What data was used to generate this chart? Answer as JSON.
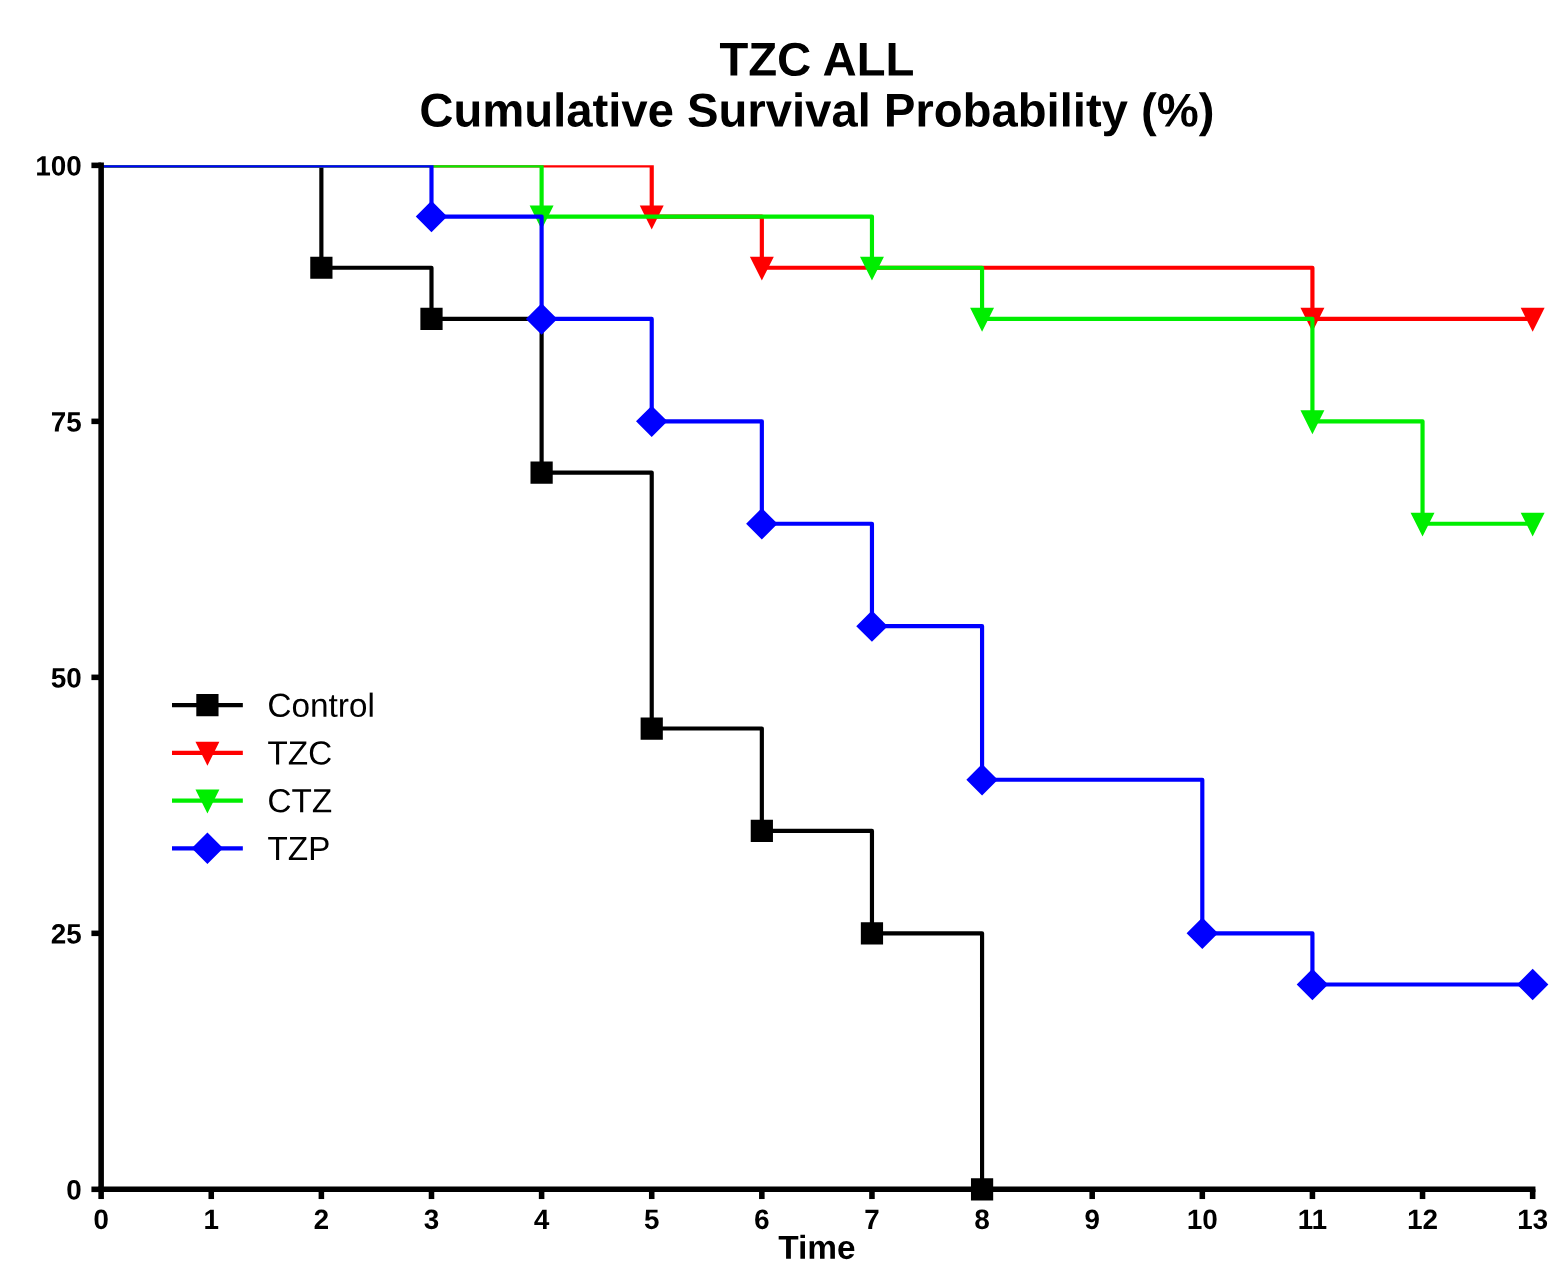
{
  "chart_data": {
    "type": "step",
    "title": "TZC ALL\nCumulative Survival Probability (%)",
    "xlabel": "Time",
    "series": [
      {
        "name": "Control",
        "color": "#000000",
        "marker": "square",
        "x": [
          0,
          2,
          3,
          4,
          5,
          6,
          7,
          8
        ],
        "values": [
          100,
          90,
          85,
          70,
          45,
          35,
          25,
          0
        ]
      },
      {
        "name": "TZC",
        "color": "#ff0000",
        "marker": "triangle",
        "x": [
          0,
          5,
          6,
          11,
          13
        ],
        "values": [
          100,
          95,
          90,
          85,
          85
        ]
      },
      {
        "name": "CTZ",
        "color": "#00ee00",
        "marker": "triangle",
        "x": [
          0,
          4,
          7,
          8,
          11,
          12,
          13
        ],
        "values": [
          100,
          95,
          90,
          85,
          75,
          65,
          65
        ]
      },
      {
        "name": "TZP",
        "color": "#0000ff",
        "marker": "diamond",
        "x": [
          0,
          3,
          4,
          5,
          6,
          7,
          8,
          10,
          11,
          13
        ],
        "values": [
          100,
          95,
          85,
          75,
          65,
          55,
          40,
          25,
          20,
          20
        ]
      }
    ],
    "xlim": [
      0,
      13
    ],
    "ylim": [
      0,
      100
    ],
    "xticks": [
      0,
      1,
      2,
      3,
      4,
      5,
      6,
      7,
      8,
      9,
      10,
      11,
      12,
      13
    ],
    "yticks": [
      0,
      25,
      50,
      75,
      100
    ],
    "grid": false,
    "legend": "center left"
  }
}
